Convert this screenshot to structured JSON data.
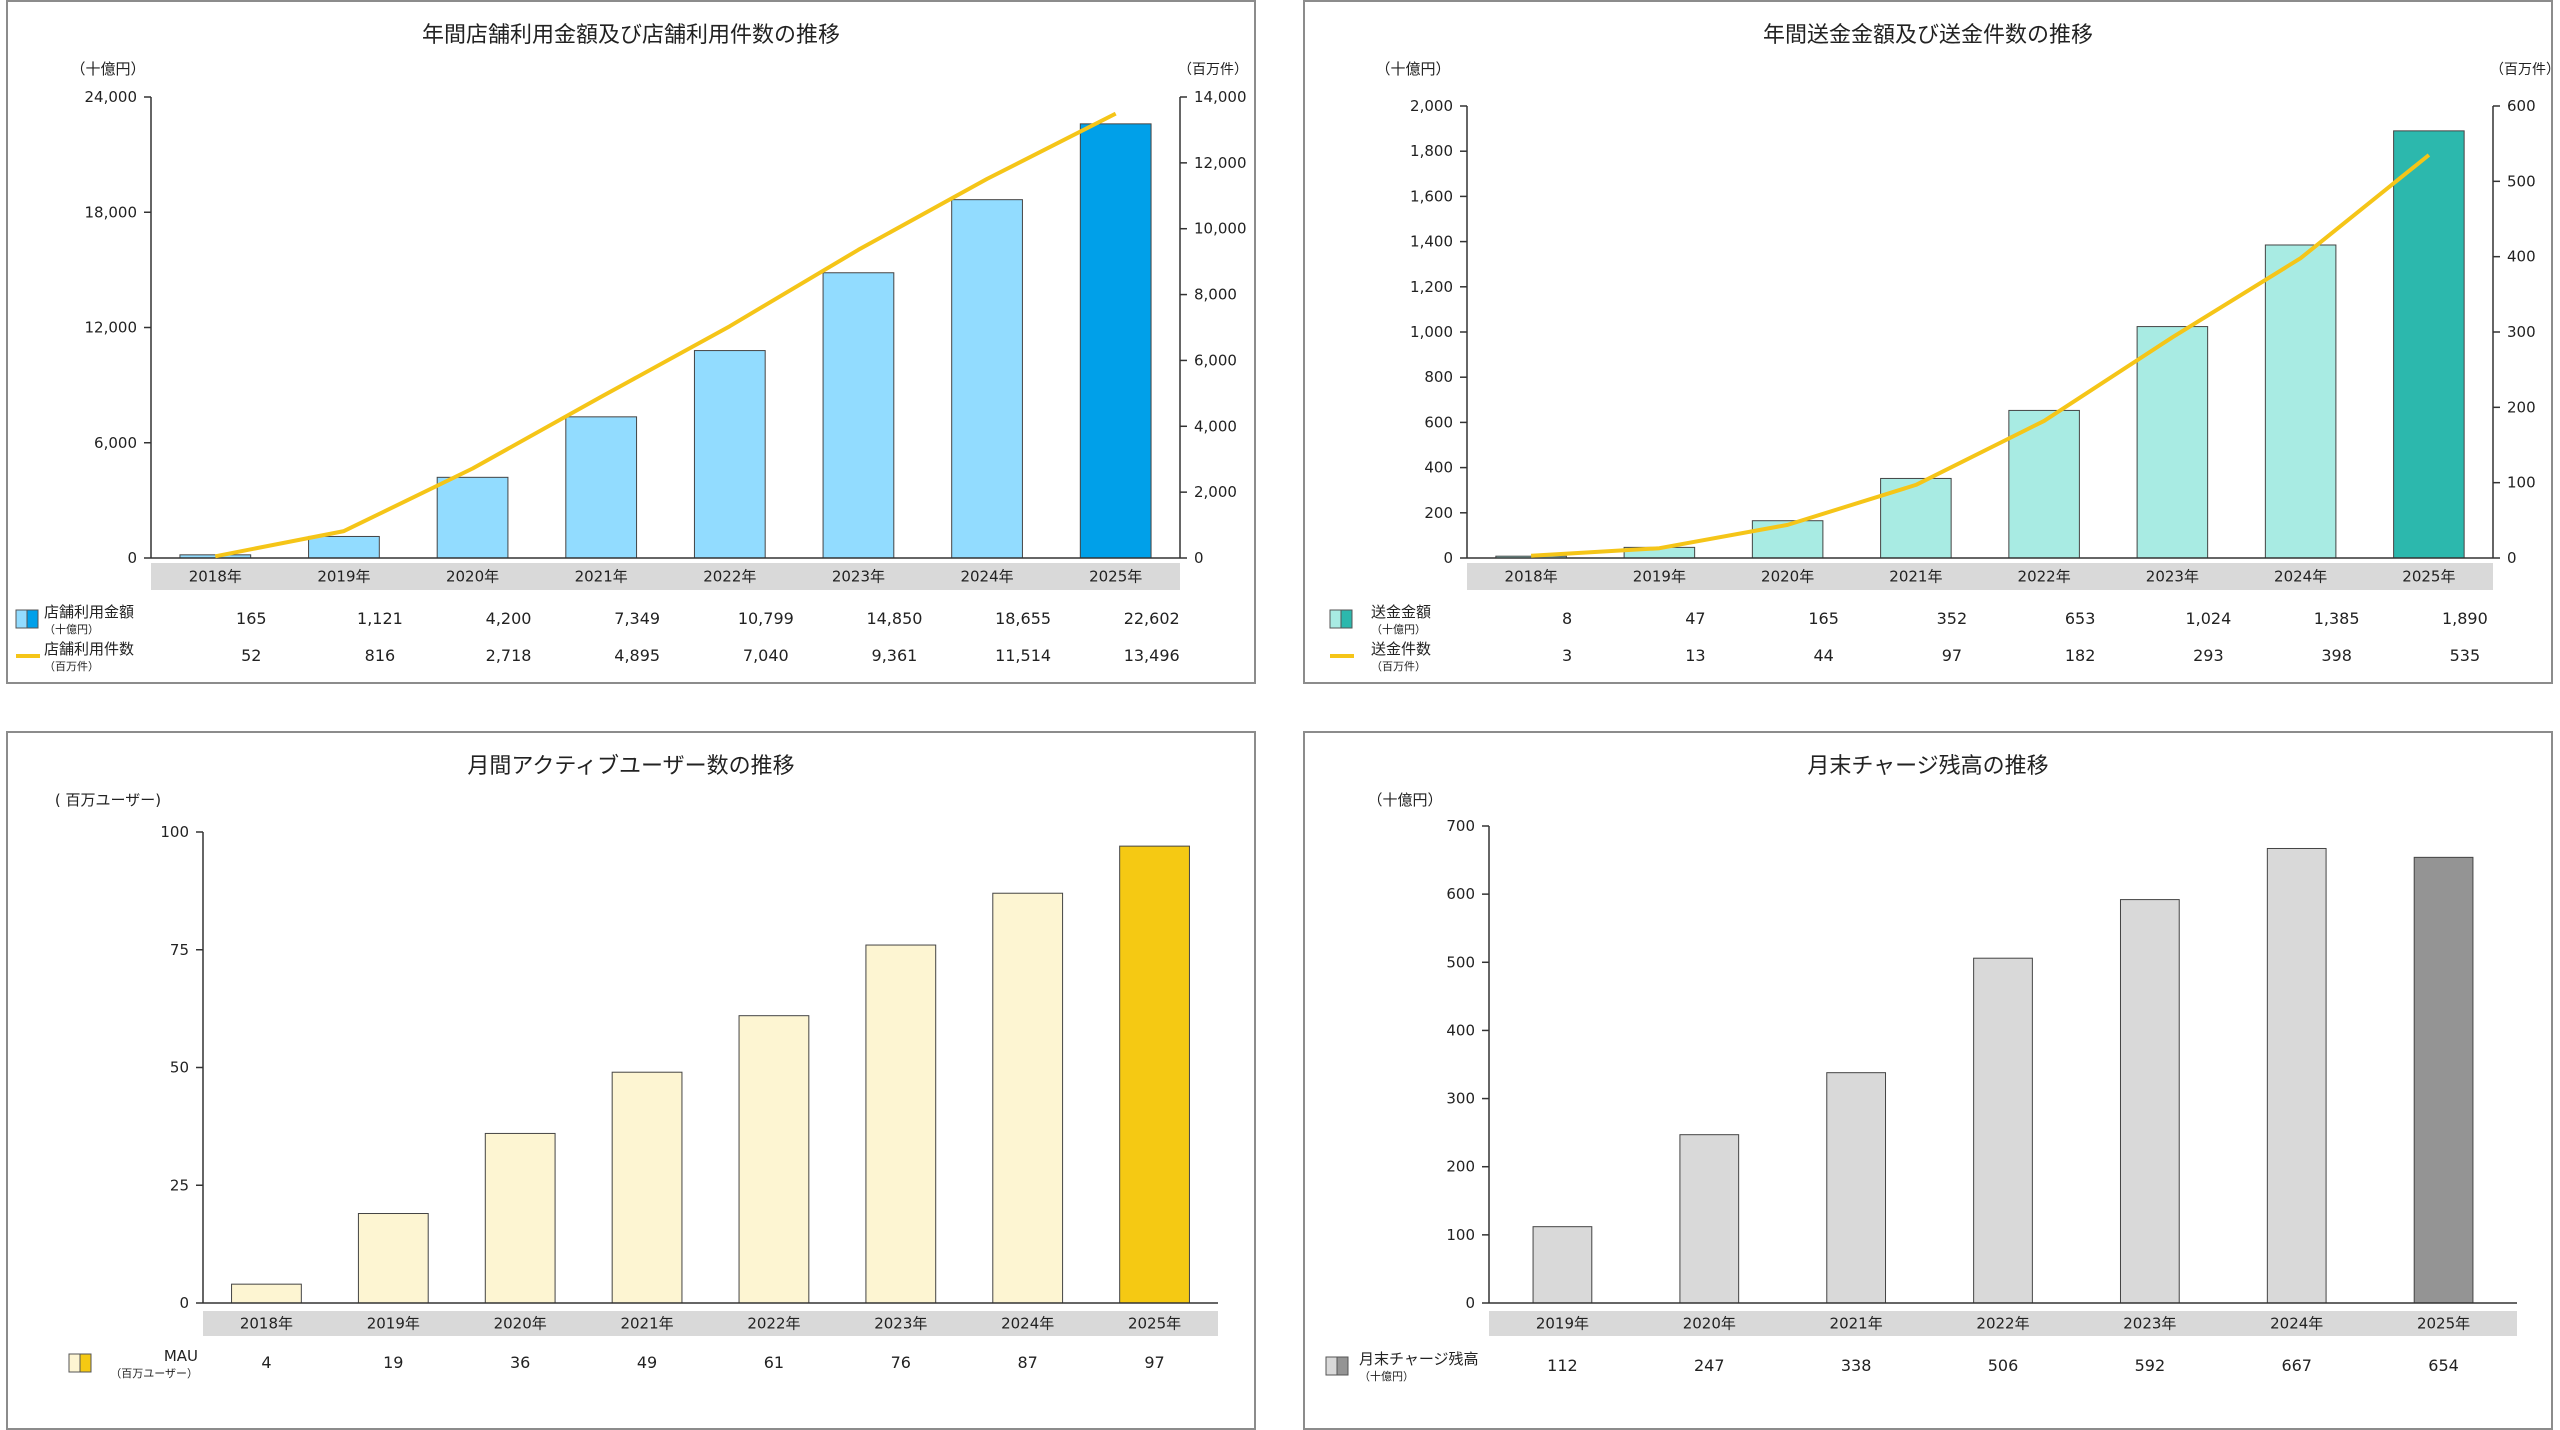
{
  "chart_data": [
    {
      "type": "bar",
      "title": "年間店舗利用金額及び店舗利用件数の推移",
      "left_unit": "（十億円）",
      "right_unit": "（百万件）",
      "categories": [
        "2018年",
        "2019年",
        "2020年",
        "2021年",
        "2022年",
        "2023年",
        "2024年",
        "2025年"
      ],
      "ylim": [
        0,
        24000
      ],
      "y_ticks": [
        "0",
        "6,000",
        "12,000",
        "18,000",
        "24,000"
      ],
      "y2lim": [
        0,
        14000
      ],
      "y2_ticks": [
        "0",
        "2,000",
        "4,000",
        "6,000",
        "8,000",
        "10,000",
        "12,000",
        "14,000"
      ],
      "grid": false,
      "series": [
        {
          "name": "店舗利用金額",
          "unit": "（十億円）",
          "kind": "bar",
          "axis": "left",
          "values": [
            165,
            1121,
            4200,
            7349,
            10799,
            14850,
            18655,
            22602
          ],
          "labels": [
            "165",
            "1,121",
            "4,200",
            "7,349",
            "10,799",
            "14,850",
            "18,655",
            "22,602"
          ],
          "color": "#92dcff",
          "highlight_color": "#00a0e9"
        },
        {
          "name": "店舗利用件数",
          "unit": "（百万件）",
          "kind": "line",
          "axis": "right",
          "values": [
            52,
            816,
            2718,
            4895,
            7040,
            9361,
            11514,
            13496
          ],
          "labels": [
            "52",
            "816",
            "2,718",
            "4,895",
            "7,040",
            "9,361",
            "11,514",
            "13,496"
          ],
          "color": "#f5c518"
        }
      ]
    },
    {
      "type": "bar",
      "title": "年間送金金額及び送金件数の推移",
      "left_unit": "（十億円）",
      "right_unit": "（百万件）",
      "categories": [
        "2018年",
        "2019年",
        "2020年",
        "2021年",
        "2022年",
        "2023年",
        "2024年",
        "2025年"
      ],
      "ylim": [
        0,
        2000
      ],
      "y_ticks": [
        "0",
        "200",
        "400",
        "600",
        "800",
        "1,000",
        "1,200",
        "1,400",
        "1,600",
        "1,800",
        "2,000"
      ],
      "y2lim": [
        0,
        600
      ],
      "y2_ticks": [
        "0",
        "100",
        "200",
        "300",
        "400",
        "500",
        "600"
      ],
      "grid": false,
      "series": [
        {
          "name": "送金金額",
          "unit": "（十億円）",
          "kind": "bar",
          "axis": "left",
          "values": [
            8,
            47,
            165,
            352,
            653,
            1024,
            1385,
            1890
          ],
          "labels": [
            "8",
            "47",
            "165",
            "352",
            "653",
            "1,024",
            "1,385",
            "1,890"
          ],
          "color": "#a8ebe3",
          "highlight_color": "#2cb8ad"
        },
        {
          "name": "送金件数",
          "unit": "（百万件）",
          "kind": "line",
          "axis": "right",
          "values": [
            3,
            13,
            44,
            97,
            182,
            293,
            398,
            535
          ],
          "labels": [
            "3",
            "13",
            "44",
            "97",
            "182",
            "293",
            "398",
            "535"
          ],
          "color": "#f5c518"
        }
      ]
    },
    {
      "type": "bar",
      "title": "月間アクティブユーザー数の推移",
      "left_unit": "( 百万ユーザー)",
      "categories": [
        "2018年",
        "2019年",
        "2020年",
        "2021年",
        "2022年",
        "2023年",
        "2024年",
        "2025年"
      ],
      "ylim": [
        0,
        100
      ],
      "y_ticks": [
        "0",
        "25",
        "50",
        "75",
        "100"
      ],
      "grid": false,
      "series": [
        {
          "name": "MAU",
          "unit": "（百万ユーザー）",
          "kind": "bar",
          "axis": "left",
          "values": [
            4,
            19,
            36,
            49,
            61,
            76,
            87,
            97
          ],
          "labels": [
            "4",
            "19",
            "36",
            "49",
            "61",
            "76",
            "87",
            "97"
          ],
          "color": "#fdf5d2",
          "highlight_color": "#f5c913"
        }
      ]
    },
    {
      "type": "bar",
      "title": "月末チャージ残高の推移",
      "left_unit": "（十億円）",
      "categories": [
        "2019年",
        "2020年",
        "2021年",
        "2022年",
        "2023年",
        "2024年",
        "2025年"
      ],
      "ylim": [
        0,
        700
      ],
      "y_ticks": [
        "0",
        "100",
        "200",
        "300",
        "400",
        "500",
        "600",
        "700"
      ],
      "grid": false,
      "series": [
        {
          "name": "月末チャージ残高",
          "unit": "（十億円）",
          "kind": "bar",
          "axis": "left",
          "values": [
            112,
            247,
            338,
            506,
            592,
            667,
            654
          ],
          "labels": [
            "112",
            "247",
            "338",
            "506",
            "592",
            "667",
            "654"
          ],
          "color": "#d9d9d9",
          "highlight_color": "#949494"
        }
      ]
    }
  ]
}
